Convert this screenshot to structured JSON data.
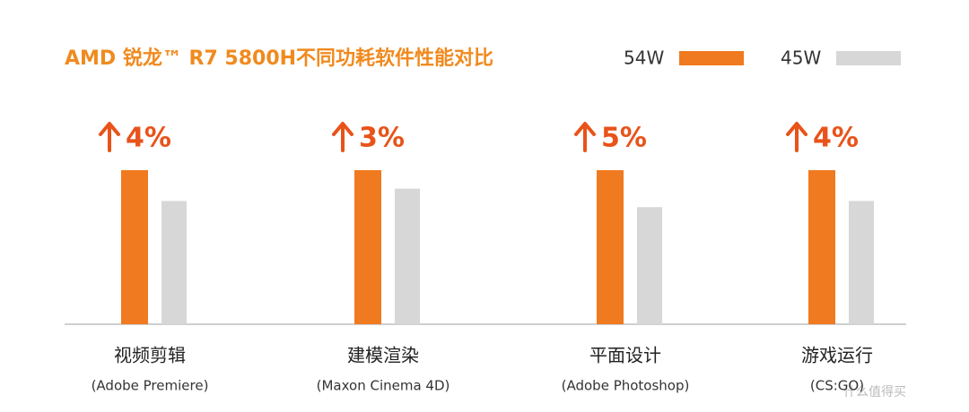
{
  "chart_data": {
    "type": "bar",
    "title": "AMD 锐龙™ R7 5800H不同功耗软件性能对比",
    "categories": [
      "视频剪辑",
      "建模渲染",
      "平面设计",
      "游戏运行"
    ],
    "category_notes": [
      "(Adobe Premiere)",
      "(Maxon Cinema 4D)",
      "(Adobe Photoshop)",
      "(CS:GO)"
    ],
    "series": [
      {
        "name": "54W",
        "color": "#f07a1f",
        "values": [
          100,
          100,
          100,
          100
        ]
      },
      {
        "name": "45W",
        "color": "#d7d7d7",
        "values": [
          80,
          88,
          76,
          80
        ]
      }
    ],
    "annotations": [
      "4%",
      "3%",
      "5%",
      "4%"
    ],
    "ylim": [
      0,
      100
    ],
    "watermark": "什么值得买"
  }
}
